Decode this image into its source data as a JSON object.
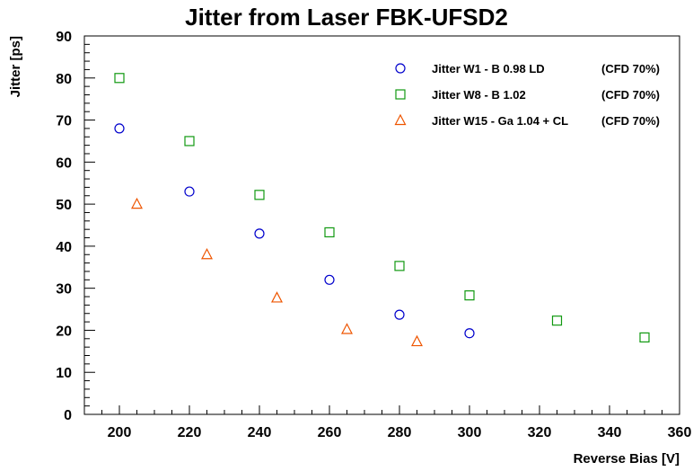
{
  "chart_data": {
    "type": "scatter",
    "title": "Jitter from Laser  FBK-UFSD2",
    "xlabel": "Reverse Bias [V]",
    "ylabel": "Jitter [ps]",
    "xlim": [
      190,
      360
    ],
    "ylim": [
      0,
      90
    ],
    "x_ticks": [
      200,
      220,
      240,
      260,
      280,
      300,
      320,
      340,
      360
    ],
    "y_ticks": [
      0,
      10,
      20,
      30,
      40,
      50,
      60,
      70,
      80,
      90
    ],
    "grid": false,
    "legend_position": "top-right",
    "series": [
      {
        "name": "Jitter W1 - B 0.98 LD",
        "annotation": "(CFD 70%)",
        "marker": "circle",
        "color": "#0000cc",
        "x": [
          200,
          220,
          240,
          260,
          280,
          300
        ],
        "y": [
          68,
          53,
          43,
          32,
          23.7,
          19.3
        ]
      },
      {
        "name": "Jitter W8 - B 1.02",
        "annotation": "(CFD 70%)",
        "marker": "square",
        "color": "#119911",
        "x": [
          200,
          220,
          240,
          260,
          280,
          300,
          325,
          350
        ],
        "y": [
          80,
          65,
          52.2,
          43.3,
          35.3,
          28.3,
          22.3,
          18.3
        ]
      },
      {
        "name": "Jitter W15 - Ga 1.04 + CL",
        "annotation": "(CFD 70%)",
        "marker": "triangle",
        "color": "#ee5500",
        "x": [
          205,
          225,
          245,
          265,
          285
        ],
        "y": [
          50,
          38,
          27.7,
          20.2,
          17.3
        ]
      }
    ]
  }
}
